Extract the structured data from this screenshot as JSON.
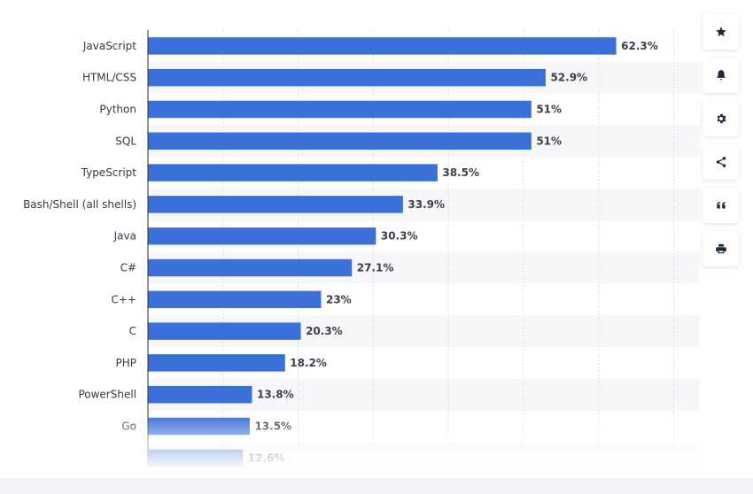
{
  "chart_data": {
    "type": "bar",
    "orientation": "horizontal",
    "categories": [
      "JavaScript",
      "HTML/CSS",
      "Python",
      "SQL",
      "TypeScript",
      "Bash/Shell (all shells)",
      "Java",
      "C#",
      "C++",
      "C",
      "PHP",
      "PowerShell",
      "Go",
      ""
    ],
    "values": [
      62.3,
      52.9,
      51,
      51,
      38.5,
      33.9,
      30.3,
      27.1,
      23,
      20.3,
      18.2,
      13.8,
      13.5,
      12.6
    ],
    "value_labels": [
      "62.3%",
      "52.9%",
      "51%",
      "51%",
      "38.5%",
      "33.9%",
      "30.3%",
      "27.1%",
      "23%",
      "20.3%",
      "18.2%",
      "13.8%",
      "13.5%",
      "12.6%"
    ],
    "xlim": [
      0,
      70
    ],
    "grid": true,
    "title": "",
    "xlabel": "",
    "ylabel": "",
    "bar_color": "#3b70d8"
  },
  "toolbar": {
    "buttons": [
      {
        "name": "favorite-button",
        "icon": "star-icon"
      },
      {
        "name": "notification-button",
        "icon": "bell-icon"
      },
      {
        "name": "settings-button",
        "icon": "gear-icon"
      },
      {
        "name": "share-button",
        "icon": "share-icon"
      },
      {
        "name": "cite-button",
        "icon": "quote-icon"
      },
      {
        "name": "print-button",
        "icon": "print-icon"
      }
    ]
  }
}
